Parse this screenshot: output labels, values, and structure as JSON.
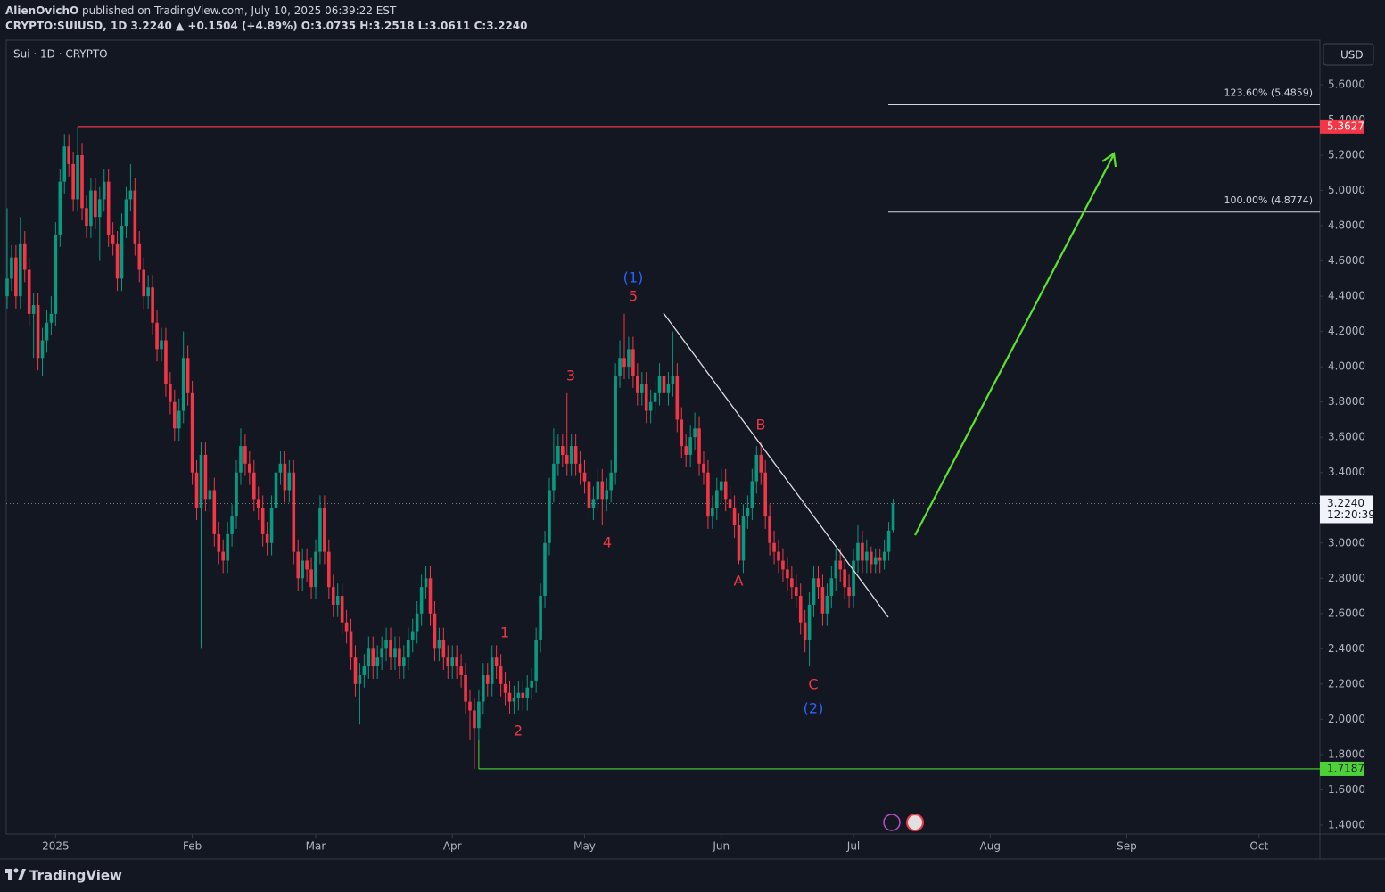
{
  "header": {
    "publisher": "AlienOvichO",
    "published": "published on TradingView.com, July 10, 2025 06:39:22 EST",
    "symbol": "CRYPTO:SUIUSD, 1D",
    "last": "3.2240",
    "change": "▲ +0.1504 (+4.89%)",
    "o_label": "O:",
    "o": "3.0735",
    "h_label": "H:",
    "h": "3.2518",
    "l_label": "L:",
    "l": "3.0611",
    "c_label": "C:",
    "c": "3.2240"
  },
  "footer": {
    "brand": "TradingView"
  },
  "chart_data": {
    "type": "candlestick",
    "legend": "Sui · 1D · CRYPTO",
    "currency": "USD",
    "up_color": "#089981",
    "down_color": "#f23645",
    "open": [
      4.4,
      4.5,
      4.62,
      4.4,
      4.7,
      4.55,
      4.3,
      4.35,
      4.05,
      4.15,
      4.25,
      4.3,
      4.75,
      5.05,
      5.25,
      5.15,
      4.95,
      5.2,
      4.9,
      4.8,
      5.0,
      4.85,
      4.95,
      5.05,
      4.75,
      4.7,
      4.5,
      4.8,
      4.95,
      5.0,
      4.7,
      4.55,
      4.4,
      4.45,
      4.25,
      4.1,
      4.15,
      3.9,
      3.8,
      3.65,
      3.75,
      4.05,
      3.85,
      3.4,
      3.2,
      3.5,
      3.25,
      3.3,
      3.05,
      2.95,
      2.9,
      3.05,
      3.15,
      3.4,
      3.55,
      3.45,
      3.4,
      3.25,
      3.2,
      3.05,
      3.0,
      3.2,
      3.4,
      3.45,
      3.3,
      3.4,
      2.95,
      2.8,
      2.9,
      2.85,
      2.75,
      2.95,
      3.2,
      2.95,
      2.75,
      2.65,
      2.7,
      2.55,
      2.5,
      2.35,
      2.2,
      2.25,
      2.3,
      2.4,
      2.3,
      2.35,
      2.4,
      2.45,
      2.35,
      2.4,
      2.3,
      2.35,
      2.45,
      2.5,
      2.6,
      2.75,
      2.8,
      2.6,
      2.4,
      2.45,
      2.35,
      2.3,
      2.35,
      2.3,
      2.25,
      2.1,
      2.05,
      1.95,
      2.1,
      2.25,
      2.2,
      2.35,
      2.3,
      2.2,
      2.15,
      2.1,
      2.12,
      2.15,
      2.12,
      2.18,
      2.22,
      2.45,
      2.7,
      3.0,
      3.3,
      3.45,
      3.55,
      3.5,
      3.45,
      3.55,
      3.45,
      3.4,
      3.35,
      3.2,
      3.25,
      3.35,
      3.25,
      3.3,
      3.4,
      3.95,
      4.05,
      4.0,
      4.1,
      3.95,
      3.85,
      3.9,
      3.75,
      3.8,
      3.85,
      3.95,
      3.85,
      3.9,
      3.95,
      3.7,
      3.55,
      3.5,
      3.6,
      3.65,
      3.45,
      3.4,
      3.15,
      3.2,
      3.3,
      3.35,
      3.25,
      3.2,
      3.1,
      2.9,
      3.15,
      3.2,
      3.35,
      3.5,
      3.4,
      3.15,
      3.0,
      2.95,
      2.9,
      2.85,
      2.8,
      2.75,
      2.7,
      2.55,
      2.45,
      2.65,
      2.8,
      2.75,
      2.6,
      2.7,
      2.8,
      2.9,
      2.85,
      2.75,
      2.7,
      2.9,
      3.0,
      2.9,
      2.95,
      2.88,
      2.92,
      2.9,
      2.95,
      3.0735
    ],
    "high": [
      4.9,
      4.69,
      4.69,
      4.85,
      4.77,
      4.62,
      4.42,
      4.42,
      4.22,
      4.32,
      4.4,
      4.82,
      5.12,
      5.32,
      5.32,
      5.22,
      5.3627,
      5.27,
      4.97,
      5.07,
      5.07,
      5.02,
      5.12,
      5.12,
      4.82,
      4.77,
      4.87,
      5.02,
      5.15,
      5.07,
      4.77,
      4.62,
      4.52,
      4.52,
      4.32,
      4.22,
      4.22,
      3.97,
      3.87,
      3.82,
      4.2,
      4.12,
      3.92,
      3.47,
      3.57,
      3.57,
      3.37,
      3.37,
      3.12,
      3.02,
      3.12,
      3.22,
      3.47,
      3.65,
      3.62,
      3.52,
      3.47,
      3.32,
      3.27,
      3.12,
      3.27,
      3.47,
      3.52,
      3.52,
      3.47,
      3.47,
      3.02,
      2.97,
      2.97,
      2.92,
      3.02,
      3.27,
      3.27,
      3.02,
      2.82,
      2.77,
      2.77,
      2.62,
      2.57,
      2.42,
      2.32,
      2.37,
      2.47,
      2.47,
      2.42,
      2.47,
      2.52,
      2.52,
      2.47,
      2.47,
      2.42,
      2.52,
      2.57,
      2.67,
      2.82,
      2.87,
      2.87,
      2.67,
      2.52,
      2.52,
      2.42,
      2.42,
      2.42,
      2.37,
      2.32,
      2.17,
      2.12,
      2.17,
      2.32,
      2.32,
      2.42,
      2.42,
      2.37,
      2.27,
      2.22,
      2.19,
      2.22,
      2.22,
      2.25,
      2.29,
      2.52,
      2.77,
      3.07,
      3.37,
      3.65,
      3.62,
      3.62,
      3.85,
      3.62,
      3.62,
      3.52,
      3.47,
      3.42,
      3.32,
      3.42,
      3.42,
      3.37,
      3.47,
      4.02,
      4.15,
      4.3,
      4.17,
      4.17,
      4.02,
      3.97,
      3.97,
      3.87,
      3.92,
      4.02,
      4.02,
      3.97,
      4.2,
      4.02,
      3.77,
      3.62,
      3.67,
      3.74,
      3.72,
      3.52,
      3.47,
      3.27,
      3.37,
      3.42,
      3.42,
      3.32,
      3.27,
      3.17,
      3.22,
      3.27,
      3.42,
      3.55,
      3.57,
      3.47,
      3.22,
      3.07,
      3.02,
      2.97,
      2.92,
      2.87,
      2.82,
      2.77,
      2.62,
      2.72,
      2.87,
      2.87,
      2.82,
      2.77,
      2.87,
      2.97,
      2.97,
      2.92,
      2.82,
      2.97,
      3.1,
      3.07,
      3.02,
      2.98,
      2.97,
      2.97,
      3.02,
      3.12,
      3.2518
    ],
    "low": [
      4.33,
      4.43,
      4.33,
      4.33,
      4.48,
      4.23,
      4.05,
      3.98,
      3.95,
      4.08,
      4.18,
      4.23,
      4.68,
      4.98,
      5.08,
      4.88,
      4.88,
      4.83,
      4.73,
      4.73,
      4.78,
      4.6,
      4.88,
      4.68,
      4.63,
      4.43,
      4.43,
      4.73,
      4.88,
      4.63,
      4.48,
      4.33,
      4.33,
      4.18,
      4.03,
      4.03,
      3.83,
      3.73,
      3.58,
      3.58,
      3.68,
      3.78,
      3.33,
      3.13,
      2.4,
      3.18,
      3.18,
      2.98,
      2.88,
      2.83,
      2.83,
      2.98,
      3.08,
      3.33,
      3.38,
      3.33,
      3.18,
      3.13,
      2.98,
      2.93,
      2.93,
      3.13,
      3.33,
      3.23,
      3.23,
      2.88,
      2.73,
      2.73,
      2.78,
      2.68,
      2.68,
      2.88,
      2.88,
      2.68,
      2.58,
      2.58,
      2.48,
      2.43,
      2.28,
      2.13,
      1.97,
      2.18,
      2.23,
      2.23,
      2.23,
      2.28,
      2.33,
      2.28,
      2.28,
      2.23,
      2.23,
      2.28,
      2.38,
      2.43,
      2.53,
      2.68,
      2.53,
      2.33,
      2.33,
      2.28,
      2.23,
      2.23,
      2.23,
      2.18,
      2.03,
      1.88,
      1.7187,
      1.88,
      2.03,
      2.13,
      2.13,
      2.23,
      2.13,
      2.08,
      2.03,
      2.03,
      2.05,
      2.05,
      2.05,
      2.11,
      2.15,
      2.38,
      2.63,
      2.93,
      3.23,
      3.38,
      3.43,
      3.38,
      3.38,
      3.38,
      3.33,
      3.28,
      3.13,
      3.13,
      3.18,
      3.1,
      3.18,
      3.23,
      3.33,
      3.88,
      3.93,
      3.93,
      3.88,
      3.78,
      3.78,
      3.68,
      3.68,
      3.73,
      3.78,
      3.78,
      3.78,
      3.83,
      3.63,
      3.48,
      3.43,
      3.43,
      3.53,
      3.38,
      3.33,
      3.08,
      3.08,
      3.13,
      3.23,
      3.18,
      3.13,
      3.03,
      2.88,
      2.83,
      3.08,
      3.13,
      3.28,
      3.33,
      3.08,
      2.93,
      2.88,
      2.83,
      2.78,
      2.73,
      2.68,
      2.63,
      2.48,
      2.38,
      2.3,
      2.58,
      2.68,
      2.53,
      2.53,
      2.63,
      2.73,
      2.78,
      2.68,
      2.63,
      2.63,
      2.83,
      2.83,
      2.83,
      2.83,
      2.83,
      2.83,
      2.85,
      2.9,
      3.0611
    ],
    "close": [
      4.5,
      4.62,
      4.4,
      4.7,
      4.55,
      4.3,
      4.35,
      4.05,
      4.15,
      4.25,
      4.3,
      4.75,
      5.05,
      5.25,
      5.15,
      4.95,
      5.2,
      4.9,
      4.8,
      5.0,
      4.85,
      4.95,
      5.05,
      4.75,
      4.7,
      4.5,
      4.8,
      4.95,
      5.0,
      4.7,
      4.55,
      4.4,
      4.45,
      4.25,
      4.1,
      4.15,
      3.9,
      3.8,
      3.65,
      3.75,
      4.05,
      3.85,
      3.4,
      3.2,
      3.5,
      3.25,
      3.3,
      3.05,
      2.95,
      2.9,
      3.05,
      3.15,
      3.4,
      3.55,
      3.45,
      3.4,
      3.25,
      3.2,
      3.05,
      3.0,
      3.2,
      3.4,
      3.45,
      3.3,
      3.4,
      2.95,
      2.8,
      2.9,
      2.85,
      2.75,
      2.95,
      3.2,
      2.95,
      2.75,
      2.65,
      2.7,
      2.55,
      2.5,
      2.35,
      2.2,
      2.25,
      2.3,
      2.4,
      2.3,
      2.35,
      2.4,
      2.45,
      2.35,
      2.4,
      2.3,
      2.35,
      2.45,
      2.5,
      2.6,
      2.75,
      2.8,
      2.6,
      2.4,
      2.45,
      2.35,
      2.3,
      2.35,
      2.3,
      2.25,
      2.1,
      2.05,
      1.95,
      2.1,
      2.25,
      2.2,
      2.35,
      2.3,
      2.2,
      2.15,
      2.1,
      2.12,
      2.15,
      2.12,
      2.18,
      2.22,
      2.45,
      2.7,
      3.0,
      3.3,
      3.45,
      3.55,
      3.5,
      3.45,
      3.55,
      3.45,
      3.4,
      3.35,
      3.2,
      3.25,
      3.35,
      3.25,
      3.3,
      3.4,
      3.95,
      4.05,
      4.0,
      4.1,
      3.95,
      3.85,
      3.9,
      3.75,
      3.8,
      3.85,
      3.95,
      3.85,
      3.9,
      3.95,
      3.7,
      3.55,
      3.5,
      3.6,
      3.65,
      3.45,
      3.4,
      3.15,
      3.2,
      3.3,
      3.35,
      3.25,
      3.2,
      3.1,
      2.9,
      3.15,
      3.2,
      3.35,
      3.5,
      3.4,
      3.15,
      3.0,
      2.95,
      2.9,
      2.85,
      2.8,
      2.75,
      2.7,
      2.55,
      2.45,
      2.65,
      2.8,
      2.75,
      2.6,
      2.7,
      2.8,
      2.9,
      2.85,
      2.75,
      2.7,
      2.9,
      3.0,
      2.9,
      2.95,
      2.88,
      2.92,
      2.9,
      2.95,
      3.07,
      3.224
    ],
    "xlim": [
      -0.2,
      297.8
    ],
    "ylim": [
      1.349,
      5.853
    ],
    "xticks": [
      {
        "value": 11,
        "label": "2025"
      },
      {
        "value": 42,
        "label": "Feb"
      },
      {
        "value": 70,
        "label": "Mar"
      },
      {
        "value": 101,
        "label": "Apr"
      },
      {
        "value": 131,
        "label": "May"
      },
      {
        "value": 162,
        "label": "Jun"
      },
      {
        "value": 192,
        "label": "Jul"
      },
      {
        "value": 223,
        "label": "Aug"
      },
      {
        "value": 254,
        "label": "Sep"
      },
      {
        "value": 284,
        "label": "Oct"
      }
    ],
    "yticks": [
      {
        "value": 5.6,
        "label": "5.6000"
      },
      {
        "value": 5.4,
        "label": "5.4000"
      },
      {
        "value": 5.2,
        "label": "5.2000"
      },
      {
        "value": 5.0,
        "label": "5.0000"
      },
      {
        "value": 4.8,
        "label": "4.8000"
      },
      {
        "value": 4.6,
        "label": "4.6000"
      },
      {
        "value": 4.4,
        "label": "4.4000"
      },
      {
        "value": 4.2,
        "label": "4.2000"
      },
      {
        "value": 4.0,
        "label": "4.0000"
      },
      {
        "value": 3.8,
        "label": "3.8000"
      },
      {
        "value": 3.6,
        "label": "3.6000"
      },
      {
        "value": 3.4,
        "label": "3.4000"
      },
      {
        "value": 3.2,
        "label": "3.2000"
      },
      {
        "value": 3.0,
        "label": "3.0000"
      },
      {
        "value": 2.8,
        "label": "2.8000"
      },
      {
        "value": 2.6,
        "label": "2.6000"
      },
      {
        "value": 2.4,
        "label": "2.4000"
      },
      {
        "value": 2.2,
        "label": "2.2000"
      },
      {
        "value": 2.0,
        "label": "2.0000"
      },
      {
        "value": 1.8,
        "label": "1.8000"
      },
      {
        "value": 1.6,
        "label": "1.6000"
      },
      {
        "value": 1.4,
        "label": "1.4000"
      }
    ],
    "last_price": {
      "value": 3.224,
      "label": "3.2240",
      "countdown": "12:20:39"
    },
    "price_lines": [
      {
        "value": 5.3627,
        "label": "5.3627",
        "color": "#f23645"
      },
      {
        "value": 1.7187,
        "label": "1.7187",
        "color": "#4cd137"
      }
    ],
    "fib_levels": [
      {
        "value": 5.4859,
        "label": "123.60% (5.4859)"
      },
      {
        "value": 4.8774,
        "label": "100.00% (4.8774)"
      }
    ],
    "wave_labels": [
      "(1)",
      "5",
      "3",
      "4",
      "1",
      "2",
      "A",
      "B",
      "C",
      "(2)"
    ]
  }
}
